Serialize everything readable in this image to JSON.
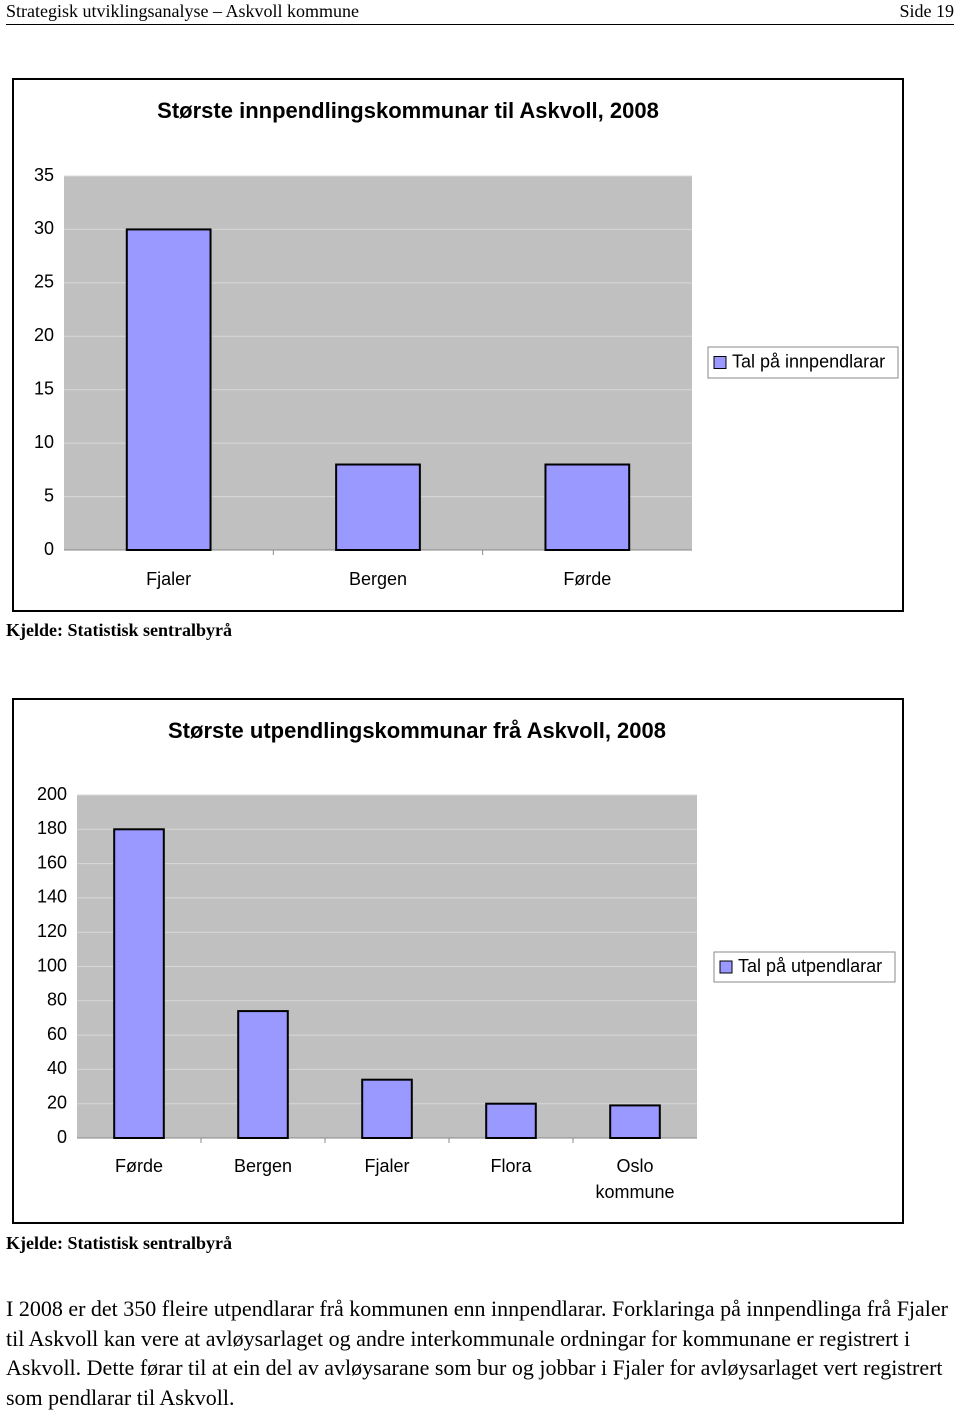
{
  "header": {
    "title": "Strategisk utviklingsanalyse – Askvoll kommune",
    "page": "Side 19"
  },
  "chart_data": [
    {
      "type": "bar",
      "title": "Største innpendlingskommunar til Askvoll, 2008",
      "categories": [
        "Fjaler",
        "Bergen",
        "Førde"
      ],
      "series": [
        {
          "name": "Tal på innpendlarar",
          "color": "#9999ff",
          "values": [
            30,
            8,
            8
          ]
        }
      ],
      "ylim": [
        0,
        35
      ],
      "yticks": [
        0,
        5,
        10,
        15,
        20,
        25,
        30,
        35
      ],
      "grid": true,
      "legend": "right"
    },
    {
      "type": "bar",
      "title": "Største utpendlingskommunar frå Askvoll, 2008",
      "categories": [
        "Førde",
        "Bergen",
        "Fjaler",
        "Flora",
        "Oslo kommune"
      ],
      "series": [
        {
          "name": "Tal på utpendlarar",
          "color": "#9999ff",
          "values": [
            180,
            74,
            34,
            20,
            19
          ]
        }
      ],
      "ylim": [
        0,
        200
      ],
      "yticks": [
        0,
        20,
        40,
        60,
        80,
        100,
        120,
        140,
        160,
        180,
        200
      ],
      "grid": true,
      "legend": "right"
    }
  ],
  "sources": [
    "Kjelde: Statistisk sentralbyrå",
    "Kjelde: Statistisk sentralbyrå"
  ],
  "paragraph": "I 2008 er det 350 fleire utpendlarar frå kommunen enn innpendlarar. Forklaringa på innpendlinga frå Fjaler til Askvoll kan vere at avløysarlaget og andre interkommunale ordningar for kommunane er registrert i Askvoll. Dette førar til at ein del av avløysarane som bur og jobbar i Fjaler for avløysarlaget vert registrert som pendlarar til Askvoll."
}
